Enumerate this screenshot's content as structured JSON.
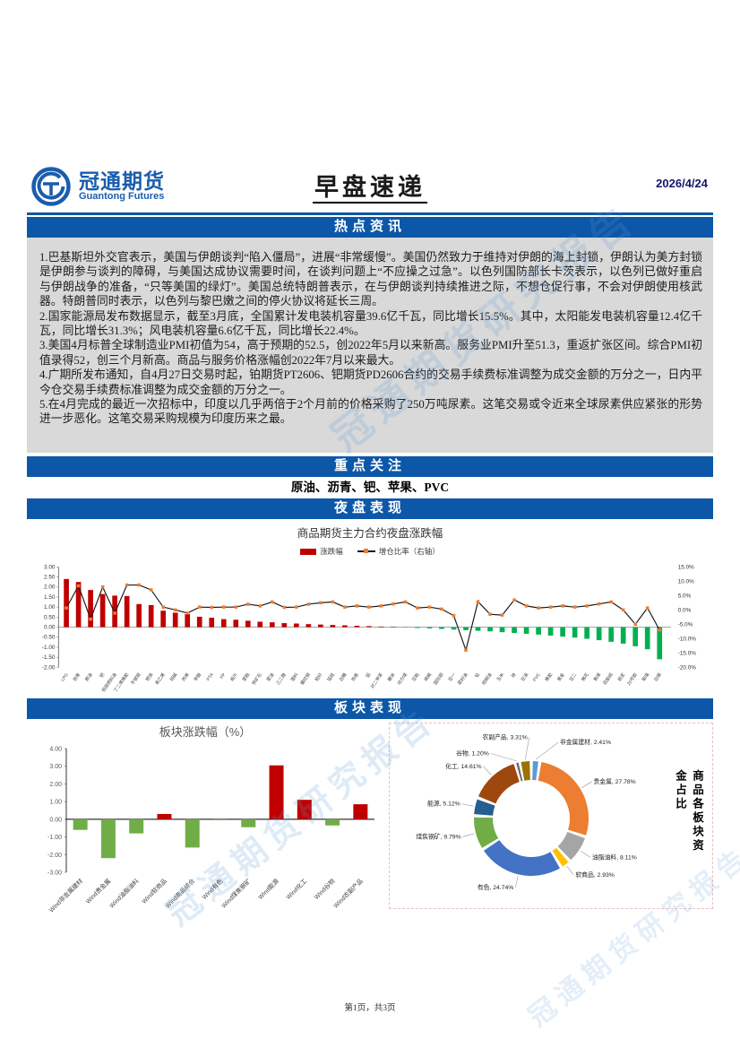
{
  "colors": {
    "banner": "#0D57A8",
    "logo": "#1A5DAD",
    "date": "#16166B",
    "news_bg": "#D9D9D9",
    "up": "#C00000",
    "down": "#00B050",
    "sector_down": "#70AD47",
    "line": "#1A1A1A",
    "marker": "#ED7D31",
    "watermark": "rgba(91,155,213,0.20)"
  },
  "header": {
    "logo_title": "冠通期货",
    "logo_subtitle": "Guantong Futures",
    "page_title": "早盘速递",
    "date": "2026/4/24"
  },
  "watermark": {
    "text": "冠通期货研究报告"
  },
  "sections": {
    "hot_news": {
      "title": "热点资讯",
      "items": [
        "1.巴基斯坦外交官表示，美国与伊朗谈判“陷入僵局”，进展“非常缓慢”。美国仍然致力于维持对伊朗的海上封锁，伊朗认为美方封锁是伊朗参与谈判的障碍，与美国达成协议需要时间，在谈判问题上“不应操之过急”。以色列国防部长卡茨表示，以色列已做好重启与伊朗战争的准备，“只等美国的绿灯”。美国总统特朗普表示，在与伊朗谈判持续推进之际，不想仓促行事，不会对伊朗使用核武器。特朗普同时表示，以色列与黎巴嫩之间的停火协议将延长三周。",
        "2.国家能源局发布数据显示，截至3月底，全国累计发电装机容量39.6亿千瓦，同比增长15.5%。其中，太阳能发电装机容量12.4亿千瓦，同比增长31.3%；风电装机容量6.6亿千瓦，同比增长22.4%。",
        "3.美国4月标普全球制造业PMI初值为54，高于预期的52.5，创2022年5月以来新高。服务业PMI升至51.3，重返扩张区间。综合PMI初值录得52，创三个月新高。商品与服务价格涨幅创2022年7月以来最大。",
        "4.广期所发布通知，自4月27日交易时起，铂期货PT2606、钯期货PD2606合约的交易手续费标准调整为成交金额的万分之一，日内平今仓交易手续费标准调整为成交金额的万分之一。",
        "5.在4月完成的最近一次招标中，印度以几乎两倍于2个月前的价格采购了250万吨尿素。这笔交易或令近来全球尿素供应紧张的形势进一步恶化。这笔交易采购规模为印度历来之最。"
      ]
    },
    "key_focus": {
      "title": "重点关注",
      "content": "原油、沥青、钯、苹果、PVC"
    },
    "night_session": {
      "title": "夜盘表现"
    },
    "sector": {
      "title": "板块表现"
    }
  },
  "footer": {
    "page_info": "第1页，共3页"
  },
  "chart_data": [
    {
      "type": "combo-bar-line",
      "title": "商品期货主力合约夜盘涨跌幅",
      "left_ylim": [
        -2,
        3
      ],
      "right_ylim": [
        -20,
        15
      ],
      "left_ticks": [
        "3.00",
        "2.50",
        "2.00",
        "1.50",
        "1.00",
        "0.50",
        "0.00",
        "-0.50",
        "-1.00",
        "-1.50",
        "-2.00"
      ],
      "right_ticks": [
        "15.0%",
        "10.0%",
        "5.0%",
        "0.0%",
        "-5.0%",
        "-10.0%",
        "-15.0%",
        "-20.0%"
      ],
      "categories": [
        "LPG",
        "沥青",
        "原油",
        "钯",
        "低硫燃料油",
        "丁二烯橡胶",
        "不锈钢",
        "燃油",
        "苯乙烯",
        "纯碱",
        "丙烯",
        "甲醇",
        "PTA",
        "PP",
        "瓶片",
        "菜粕",
        "铁矿石",
        "菜油",
        "乙二醇",
        "塑料",
        "螺纹钢",
        "短纤",
        "锰硅",
        "白糖",
        "热卷",
        "铝",
        "对二甲苯",
        "粳米",
        "动力煤",
        "豆粕",
        "烧碱",
        "国际铜",
        "豆一",
        "菜籽油",
        "铅",
        "棕榈油",
        "玉米",
        "锌",
        "豆油",
        "PVC",
        "橡胶",
        "黄金",
        "豆二",
        "棉花",
        "焦煤",
        "双胶纸",
        "纸浆",
        "20号胶",
        "玻璃",
        "白银"
      ],
      "series": [
        {
          "name": "涨跌幅",
          "kind": "bar",
          "values": [
            2.4,
            2.25,
            1.85,
            1.65,
            1.57,
            1.55,
            1.15,
            1.1,
            0.82,
            0.72,
            0.65,
            0.52,
            0.47,
            0.4,
            0.37,
            0.32,
            0.27,
            0.24,
            0.2,
            0.18,
            0.15,
            0.13,
            0.11,
            0.09,
            0.07,
            0.05,
            0.03,
            0.02,
            -0.02,
            -0.04,
            -0.06,
            -0.09,
            -0.12,
            -0.15,
            -0.18,
            -0.21,
            -0.25,
            -0.29,
            -0.33,
            -0.37,
            -0.42,
            -0.47,
            -0.52,
            -0.58,
            -0.65,
            -0.73,
            -0.82,
            -0.95,
            -1.1,
            -1.6
          ]
        },
        {
          "name": "增仓比率（右轴）",
          "kind": "line",
          "axis": "right",
          "values": [
            0.7,
            8.4,
            -3.2,
            8.0,
            -1.1,
            8.7,
            8.7,
            7.0,
            1.0,
            0.0,
            -1.1,
            1.0,
            0.9,
            1.0,
            1.0,
            2.0,
            1.4,
            2.8,
            0.9,
            1.0,
            2.0,
            2.5,
            2.8,
            1.0,
            1.4,
            1.0,
            1.4,
            2.1,
            2.8,
            0.7,
            1.0,
            0.3,
            -2.0,
            -14.0,
            2.9,
            -1.5,
            -1.8,
            3.5,
            1.4,
            0.7,
            1.0,
            1.4,
            1.0,
            1.4,
            2.1,
            2.8,
            0.0,
            -5.0,
            0.7,
            -7.0
          ]
        }
      ]
    },
    {
      "type": "bar",
      "title": "板块涨跌幅（%）",
      "ylim": [
        -3,
        4
      ],
      "yticks": [
        "4.00",
        "3.00",
        "2.00",
        "1.00",
        "0.00",
        "-1.00",
        "-2.00",
        "-3.00"
      ],
      "categories": [
        "Wind非金属建材",
        "Wind贵金属",
        "Wind油脂油料",
        "Wind软商品",
        "Wind商品综合",
        "Wind有色",
        "Wind煤焦钢矿",
        "Wind能源",
        "Wind化工",
        "Wind谷物",
        "Wind农副产品"
      ],
      "values": [
        -0.6,
        -2.2,
        -0.8,
        0.3,
        -1.6,
        -0.05,
        -0.45,
        3.05,
        1.1,
        -0.35,
        0.85
      ]
    },
    {
      "type": "pie",
      "title": "商品各板块资金占比",
      "labels": [
        "非金属建材",
        "贵金属",
        "油脂油料",
        "软商品",
        "有色",
        "煤焦钢矿",
        "能源",
        "化工",
        "谷物",
        "农副产品"
      ],
      "values": [
        2.41,
        27.78,
        8.11,
        2.93,
        24.74,
        9.79,
        5.12,
        14.61,
        1.2,
        3.31
      ],
      "colors": [
        "#5B9BD5",
        "#ED7D31",
        "#A5A5A5",
        "#FFC000",
        "#4472C4",
        "#70AD47",
        "#255E91",
        "#9E480E",
        "#636363",
        "#997300"
      ]
    }
  ]
}
